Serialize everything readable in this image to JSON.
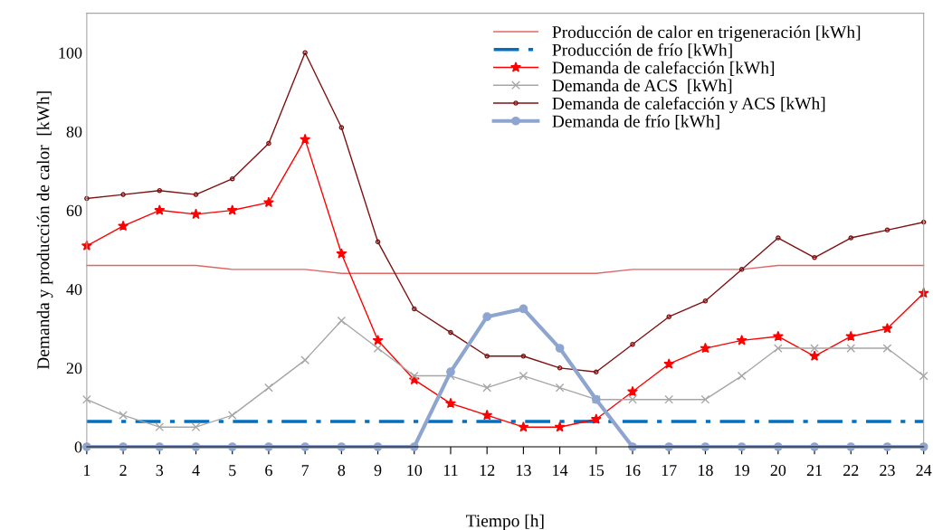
{
  "chart_data": {
    "type": "line",
    "xlabel": "Tiempo [h]",
    "ylabel": "Demanda y producción de calor  [kWh]",
    "x": [
      1,
      2,
      3,
      4,
      5,
      6,
      7,
      8,
      9,
      10,
      11,
      12,
      13,
      14,
      15,
      16,
      17,
      18,
      19,
      20,
      21,
      22,
      23,
      24
    ],
    "xlim": [
      1,
      24
    ],
    "xticks": [
      1,
      2,
      3,
      4,
      5,
      6,
      7,
      8,
      9,
      10,
      11,
      12,
      13,
      14,
      15,
      16,
      17,
      18,
      19,
      20,
      21,
      22,
      23,
      24
    ],
    "ylim": [
      0,
      110
    ],
    "yticks": [
      0,
      20,
      40,
      60,
      80,
      100
    ],
    "grid": false,
    "legend": "top right",
    "series": [
      {
        "name": "Producción de calor en trigeneración [kWh]",
        "color": "#e06666",
        "marker": "none",
        "line_style": "solid",
        "values": [
          46,
          46,
          46,
          46,
          45,
          45,
          45,
          44,
          44,
          44,
          44,
          44,
          44,
          44,
          44,
          45,
          45,
          45,
          45,
          46,
          46,
          46,
          46,
          46
        ]
      },
      {
        "name": "Producción de frío [kWh]",
        "color": "#0070c0",
        "marker": "none",
        "line_style": "dashdot",
        "values": [
          6.4,
          6.4,
          6.4,
          6.4,
          6.4,
          6.4,
          6.4,
          6.4,
          6.4,
          6.4,
          6.4,
          6.4,
          6.4,
          6.4,
          6.4,
          6.4,
          6.4,
          6.4,
          6.4,
          6.4,
          6.4,
          6.4,
          6.4,
          6.4
        ]
      },
      {
        "name": "Demanda de calefacción [kWh]",
        "color": "#ff0000",
        "marker": "star",
        "line_style": "solid",
        "values": [
          51,
          56,
          60,
          59,
          60,
          62,
          78,
          49,
          27,
          17,
          11,
          8,
          5,
          5,
          7,
          14,
          21,
          25,
          27,
          28,
          23,
          28,
          30,
          39
        ]
      },
      {
        "name": "Demanda de ACS  [kWh]",
        "color": "#a6a6a6",
        "marker": "cross",
        "line_style": "solid",
        "values": [
          12,
          8,
          5,
          5,
          8,
          15,
          22,
          32,
          25,
          18,
          18,
          15,
          18,
          15,
          12,
          12,
          12,
          12,
          18,
          25,
          25,
          25,
          25,
          18
        ]
      },
      {
        "name": "Demanda de calefacción y ACS [kWh]",
        "color": "#7f1010",
        "marker": "circle",
        "line_style": "solid",
        "values": [
          63,
          64,
          65,
          64,
          68,
          77,
          100,
          81,
          52,
          35,
          29,
          23,
          23,
          20,
          19,
          26,
          33,
          37,
          45,
          53,
          48,
          53,
          55,
          57
        ]
      },
      {
        "name": "Demanda de frío [kWh]",
        "color": "#8ea5d0",
        "marker": "circle",
        "line_style": "solid",
        "values": [
          0,
          0,
          0,
          0,
          0,
          0,
          0,
          0,
          0,
          0,
          19,
          33,
          35,
          25,
          12,
          0,
          0,
          0,
          0,
          0,
          0,
          0,
          0,
          0
        ]
      }
    ]
  }
}
